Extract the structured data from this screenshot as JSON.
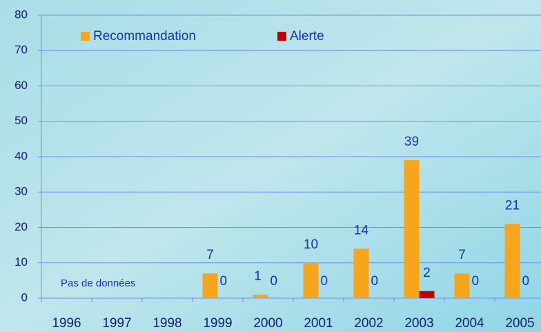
{
  "chart_data": {
    "type": "bar",
    "categories": [
      "1996",
      "1997",
      "1998",
      "1999",
      "2000",
      "2001",
      "2002",
      "2003",
      "2004",
      "2005"
    ],
    "series": [
      {
        "name": "Recommandation",
        "color": "#f7a51c",
        "values": [
          null,
          null,
          null,
          7,
          1,
          10,
          14,
          39,
          7,
          21
        ]
      },
      {
        "name": "Alerte",
        "color": "#c00000",
        "values": [
          null,
          null,
          null,
          0,
          0,
          0,
          0,
          2,
          0,
          0
        ]
      }
    ],
    "annotation": "Pas de données",
    "ylim": [
      0,
      80
    ],
    "yticks": [
      0,
      10,
      20,
      30,
      40,
      50,
      60,
      70,
      80
    ],
    "grid": true,
    "legend": "top"
  }
}
